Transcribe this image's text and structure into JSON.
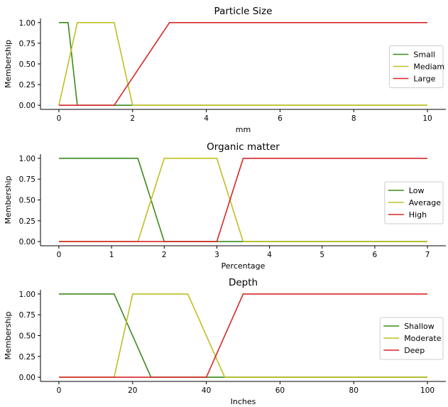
{
  "chart_data": [
    {
      "type": "line",
      "title": "Particle Size",
      "xlabel": "mm",
      "ylabel": "Membership",
      "xlim": [
        -0.5,
        10.5
      ],
      "ylim": [
        -0.05,
        1.05
      ],
      "xticks": [
        "0",
        "2",
        "4",
        "6",
        "8",
        "10"
      ],
      "yticks": [
        "0.00",
        "0.25",
        "0.50",
        "0.75",
        "1.00"
      ],
      "legend_position": "right",
      "series": [
        {
          "name": "Small",
          "color": "#3a8a1c",
          "x": [
            0,
            0.25,
            0.5,
            10
          ],
          "y": [
            1,
            1,
            0,
            0
          ]
        },
        {
          "name": "Mediam",
          "color": "#bfbf22",
          "x": [
            0,
            0.5,
            1.5,
            2,
            10
          ],
          "y": [
            0,
            1,
            1,
            0,
            0
          ]
        },
        {
          "name": "Large",
          "color": "#d62728",
          "x": [
            0,
            1.5,
            3,
            10
          ],
          "y": [
            0,
            0,
            1,
            1
          ]
        }
      ]
    },
    {
      "type": "line",
      "title": "Organic matter",
      "xlabel": "Percentage",
      "ylabel": "Membership",
      "xlim": [
        -0.35,
        7.35
      ],
      "ylim": [
        -0.05,
        1.05
      ],
      "xticks": [
        "0",
        "1",
        "2",
        "3",
        "4",
        "5",
        "6",
        "7"
      ],
      "yticks": [
        "0.00",
        "0.25",
        "0.50",
        "0.75",
        "1.00"
      ],
      "legend_position": "right",
      "series": [
        {
          "name": "Low",
          "color": "#3a8a1c",
          "x": [
            0,
            1.5,
            2,
            7
          ],
          "y": [
            1,
            1,
            0,
            0
          ]
        },
        {
          "name": "Average",
          "color": "#bfbf22",
          "x": [
            0,
            1.5,
            2,
            3,
            3.5,
            7
          ],
          "y": [
            0,
            0,
            1,
            1,
            0,
            0
          ]
        },
        {
          "name": "High",
          "color": "#d62728",
          "x": [
            0,
            3,
            3.5,
            7
          ],
          "y": [
            0,
            0,
            1,
            1
          ]
        }
      ]
    },
    {
      "type": "line",
      "title": "Depth",
      "xlabel": "Inches",
      "ylabel": "Membership",
      "xlim": [
        -5,
        105
      ],
      "ylim": [
        -0.05,
        1.05
      ],
      "xticks": [
        "0",
        "20",
        "40",
        "60",
        "80",
        "100"
      ],
      "yticks": [
        "0.00",
        "0.25",
        "0.50",
        "0.75",
        "1.00"
      ],
      "legend_position": "right",
      "series": [
        {
          "name": "Shallow",
          "color": "#3a8a1c",
          "x": [
            0,
            15,
            25,
            100
          ],
          "y": [
            1,
            1,
            0,
            0
          ]
        },
        {
          "name": "Moderate",
          "color": "#bfbf22",
          "x": [
            0,
            15,
            20,
            35,
            45,
            100
          ],
          "y": [
            0,
            0,
            1,
            1,
            0,
            0
          ]
        },
        {
          "name": "Deep",
          "color": "#d62728",
          "x": [
            0,
            40,
            50,
            100
          ],
          "y": [
            0,
            0,
            1,
            1
          ]
        }
      ]
    }
  ]
}
